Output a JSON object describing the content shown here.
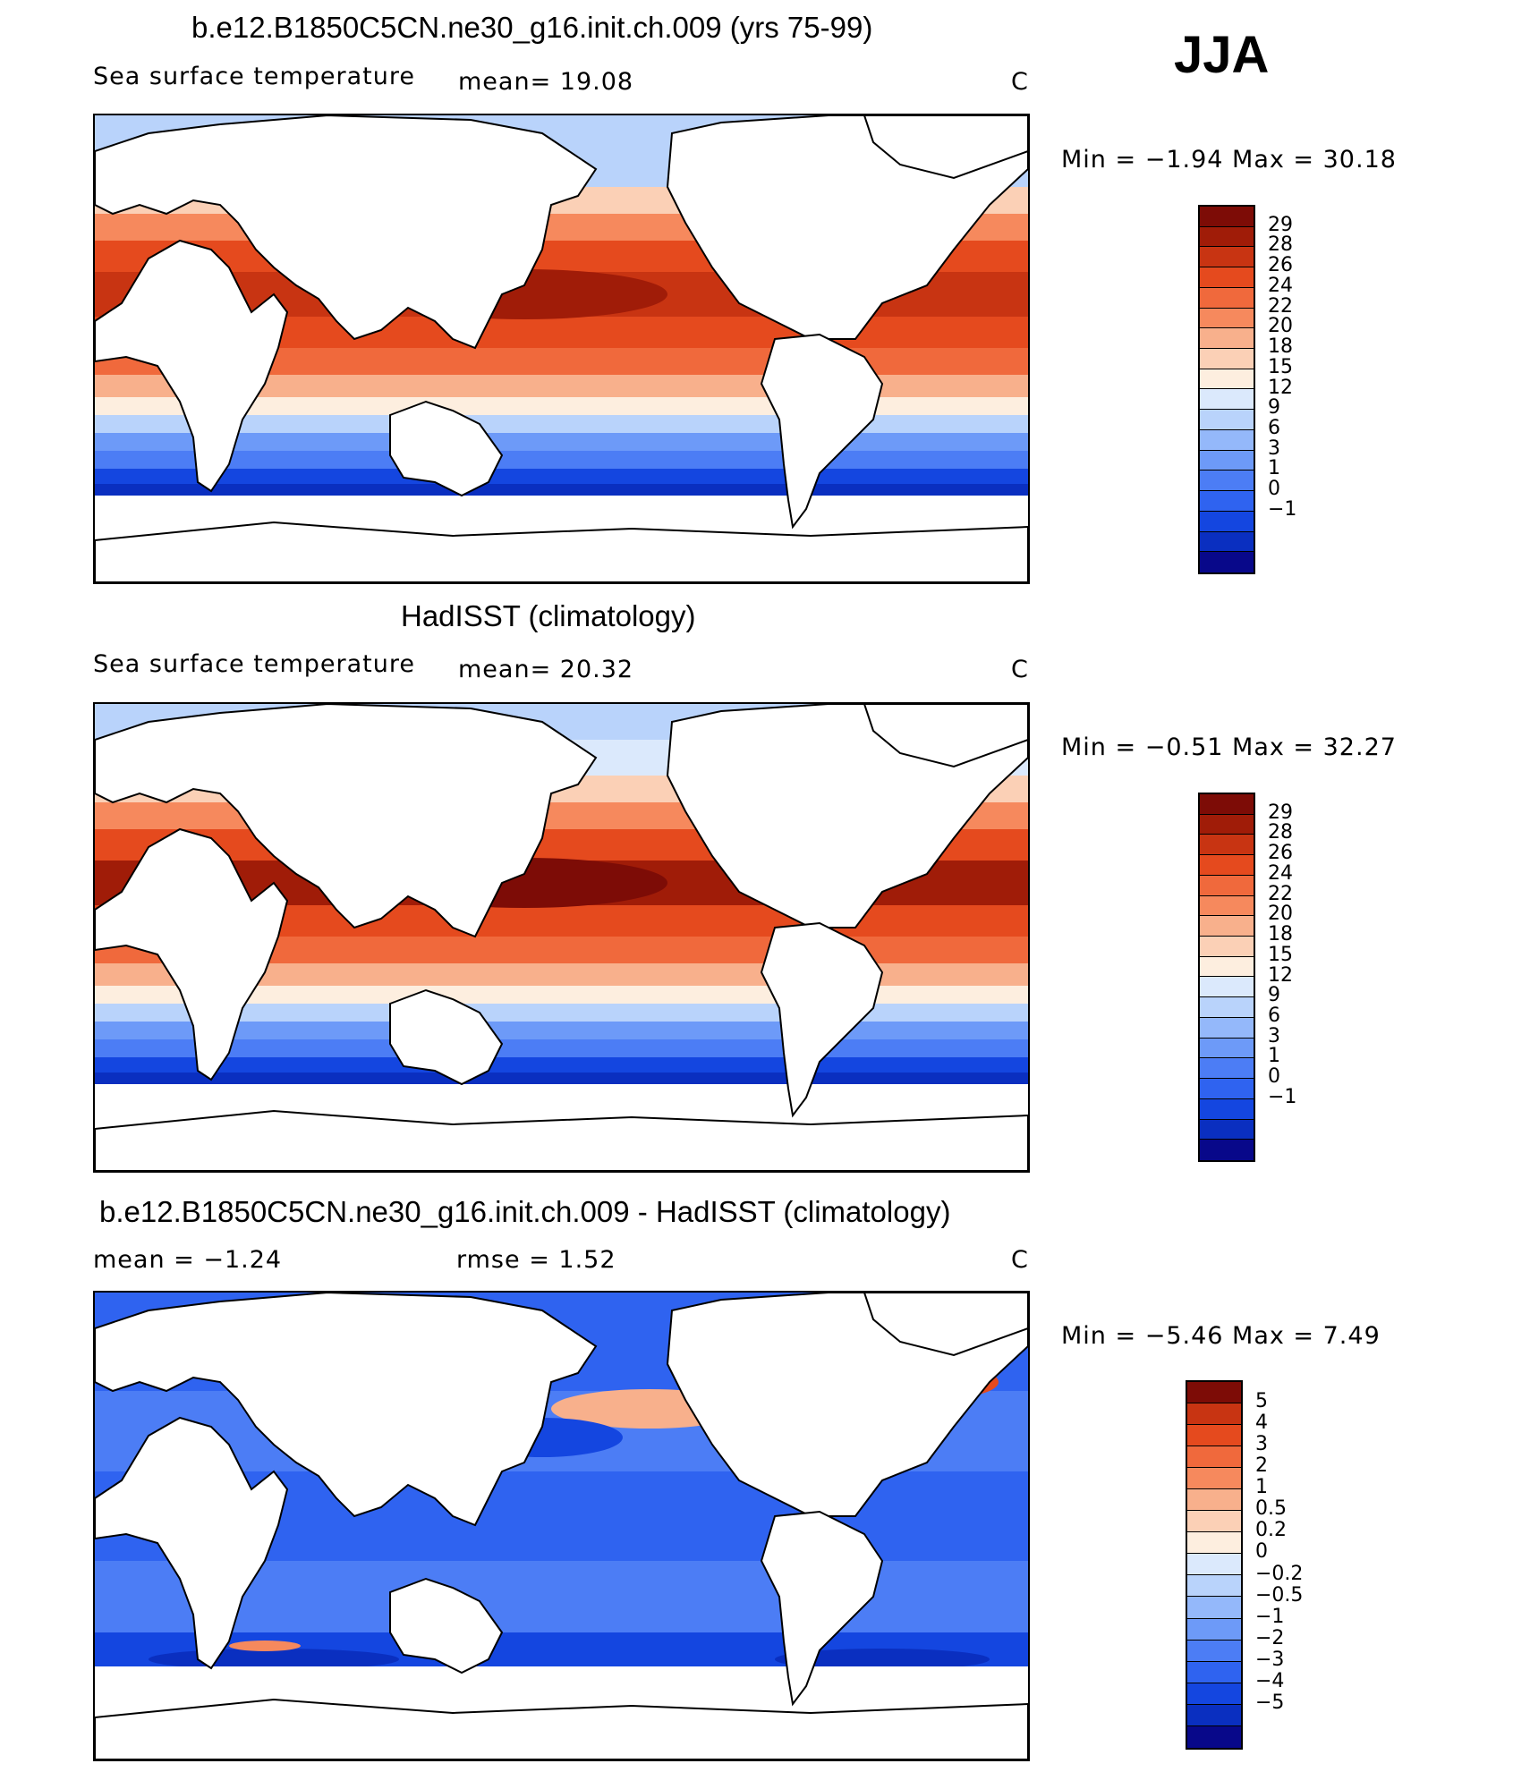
{
  "season_label": "JJA",
  "palette_abs": [
    "#08088a",
    "#0a2fc0",
    "#1446e0",
    "#2f63f0",
    "#4c7df5",
    "#6d9af8",
    "#94b8fa",
    "#b9d3fb",
    "#dbe9fc",
    "#fdeedf",
    "#fbd0b6",
    "#f8b08c",
    "#f6895d",
    "#f0693c",
    "#e54a1e",
    "#c83412",
    "#a01c08",
    "#7d0c06"
  ],
  "palette_diff": [
    "#08088a",
    "#0a2fc0",
    "#1446e0",
    "#2f63f0",
    "#4c7df5",
    "#6d9af8",
    "#94b8fa",
    "#b9d3fb",
    "#dbe9fc",
    "#fdeedf",
    "#fbd0b6",
    "#f8b08c",
    "#f6895d",
    "#f0693c",
    "#e54a1e",
    "#c83412",
    "#7d0c06"
  ],
  "panels": [
    {
      "title": "b.e12.B1850C5CN.ne30_g16.init.ch.009 (yrs 75-99)",
      "left_label": "Sea surface temperature",
      "mid_label": "mean=   19.08",
      "units": "C",
      "minmax": "Min =   −1.94  Max =   30.18",
      "colorbar_ticks": [
        "29",
        "28",
        "26",
        "24",
        "22",
        "20",
        "18",
        "15",
        "12",
        "9",
        "6",
        "3",
        "1",
        "0",
        "−1"
      ]
    },
    {
      "title": "HadISST (climatology)",
      "left_label": "Sea surface temperature",
      "mid_label": "mean=   20.32",
      "units": "C",
      "minmax": "Min =   −0.51  Max =   32.27",
      "colorbar_ticks": [
        "29",
        "28",
        "26",
        "24",
        "22",
        "20",
        "18",
        "15",
        "12",
        "9",
        "6",
        "3",
        "1",
        "0",
        "−1"
      ]
    },
    {
      "title": "b.e12.B1850C5CN.ne30_g16.init.ch.009 - HadISST (climatology)",
      "left_label": "mean =   −1.24",
      "mid_label": "rmse =    1.52",
      "units": "C",
      "minmax": "Min =   −5.46  Max =    7.49",
      "colorbar_ticks": [
        "5",
        "4",
        "3",
        "2",
        "1",
        "0.5",
        "0.2",
        "0",
        "−0.2",
        "−0.5",
        "−1",
        "−2",
        "−3",
        "−4",
        "−5"
      ]
    }
  ],
  "chart_data": [
    {
      "type": "heatmap",
      "title": "b.e12.B1850C5CN.ne30_g16.init.ch.009 (yrs 75-99)",
      "variable": "Sea surface temperature",
      "units": "C",
      "mean": 19.08,
      "min": -1.94,
      "max": 30.18,
      "contour_levels": [
        -1,
        0,
        1,
        3,
        6,
        9,
        12,
        15,
        18,
        20,
        22,
        24,
        26,
        28,
        29
      ]
    },
    {
      "type": "heatmap",
      "title": "HadISST (climatology)",
      "variable": "Sea surface temperature",
      "units": "C",
      "mean": 20.32,
      "min": -0.51,
      "max": 32.27,
      "contour_levels": [
        -1,
        0,
        1,
        3,
        6,
        9,
        12,
        15,
        18,
        20,
        22,
        24,
        26,
        28,
        29
      ]
    },
    {
      "type": "heatmap",
      "title": "b.e12.B1850C5CN.ne30_g16.init.ch.009 - HadISST (climatology)",
      "units": "C",
      "mean": -1.24,
      "rmse": 1.52,
      "min": -5.46,
      "max": 7.49,
      "contour_levels": [
        -5,
        -4,
        -3,
        -2,
        -1,
        -0.5,
        -0.2,
        0,
        0.2,
        0.5,
        1,
        2,
        3,
        4,
        5
      ]
    }
  ]
}
